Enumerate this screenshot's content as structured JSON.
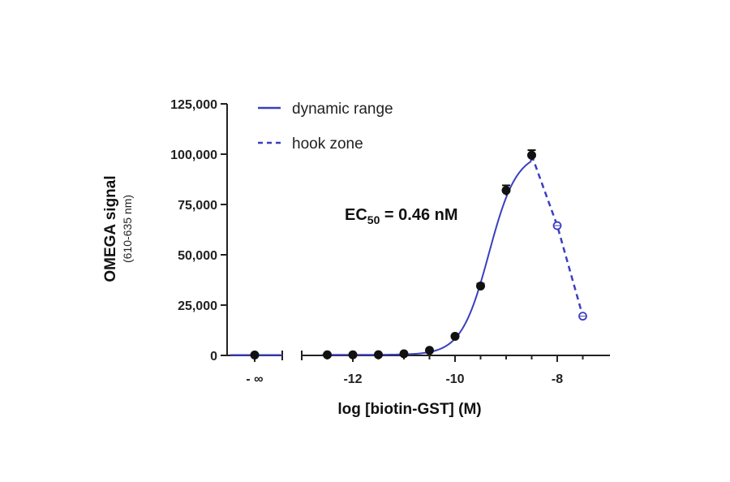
{
  "chart_data": {
    "type": "scatter",
    "xlabel": "log [biotin-GST] (M)",
    "ylabel": "OMEGA signal",
    "ylabel_sub": "(610-635 nm)",
    "x_ticks": [
      -12,
      -10,
      -8
    ],
    "x_tick_labels": [
      "-12",
      "-10",
      "-8"
    ],
    "x_break_label": "- ∞",
    "y_ticks": [
      0,
      25000,
      50000,
      75000,
      100000,
      125000
    ],
    "y_tick_labels": [
      "0",
      "25,000",
      "50,000",
      "75,000",
      "100,000",
      "125,000"
    ],
    "ylim": [
      0,
      125000
    ],
    "xlim": [
      -13.0,
      -7.0
    ],
    "legend_position": "top-left",
    "colors": {
      "fit": "#3b3fbf",
      "points": "#111111",
      "hook": "#3b3fbf"
    },
    "annotation": {
      "text_main": "EC",
      "text_sub": "50",
      "text_rest": " = 0.46 nM"
    },
    "series": [
      {
        "name": "dynamic range",
        "style": "solid-line-with-filled-points",
        "points": [
          {
            "x": "-∞",
            "y": 200
          },
          {
            "x": -12.5,
            "y": 300
          },
          {
            "x": -12.0,
            "y": 300
          },
          {
            "x": -11.5,
            "y": 350
          },
          {
            "x": -11.0,
            "y": 800
          },
          {
            "x": -10.5,
            "y": 2500
          },
          {
            "x": -10.0,
            "y": 9500
          },
          {
            "x": -9.5,
            "y": 34500
          },
          {
            "x": -9.0,
            "y": 82000
          },
          {
            "x": -8.5,
            "y": 99500
          }
        ],
        "error": [
          0,
          0,
          0,
          0,
          0,
          0,
          0,
          1200,
          2500,
          2500
        ]
      },
      {
        "name": "hook zone",
        "style": "dashed-line-with-open-points",
        "points": [
          {
            "x": -8.5,
            "y": 99500
          },
          {
            "x": -8.0,
            "y": 64500
          },
          {
            "x": -7.5,
            "y": 19500
          }
        ]
      }
    ]
  }
}
